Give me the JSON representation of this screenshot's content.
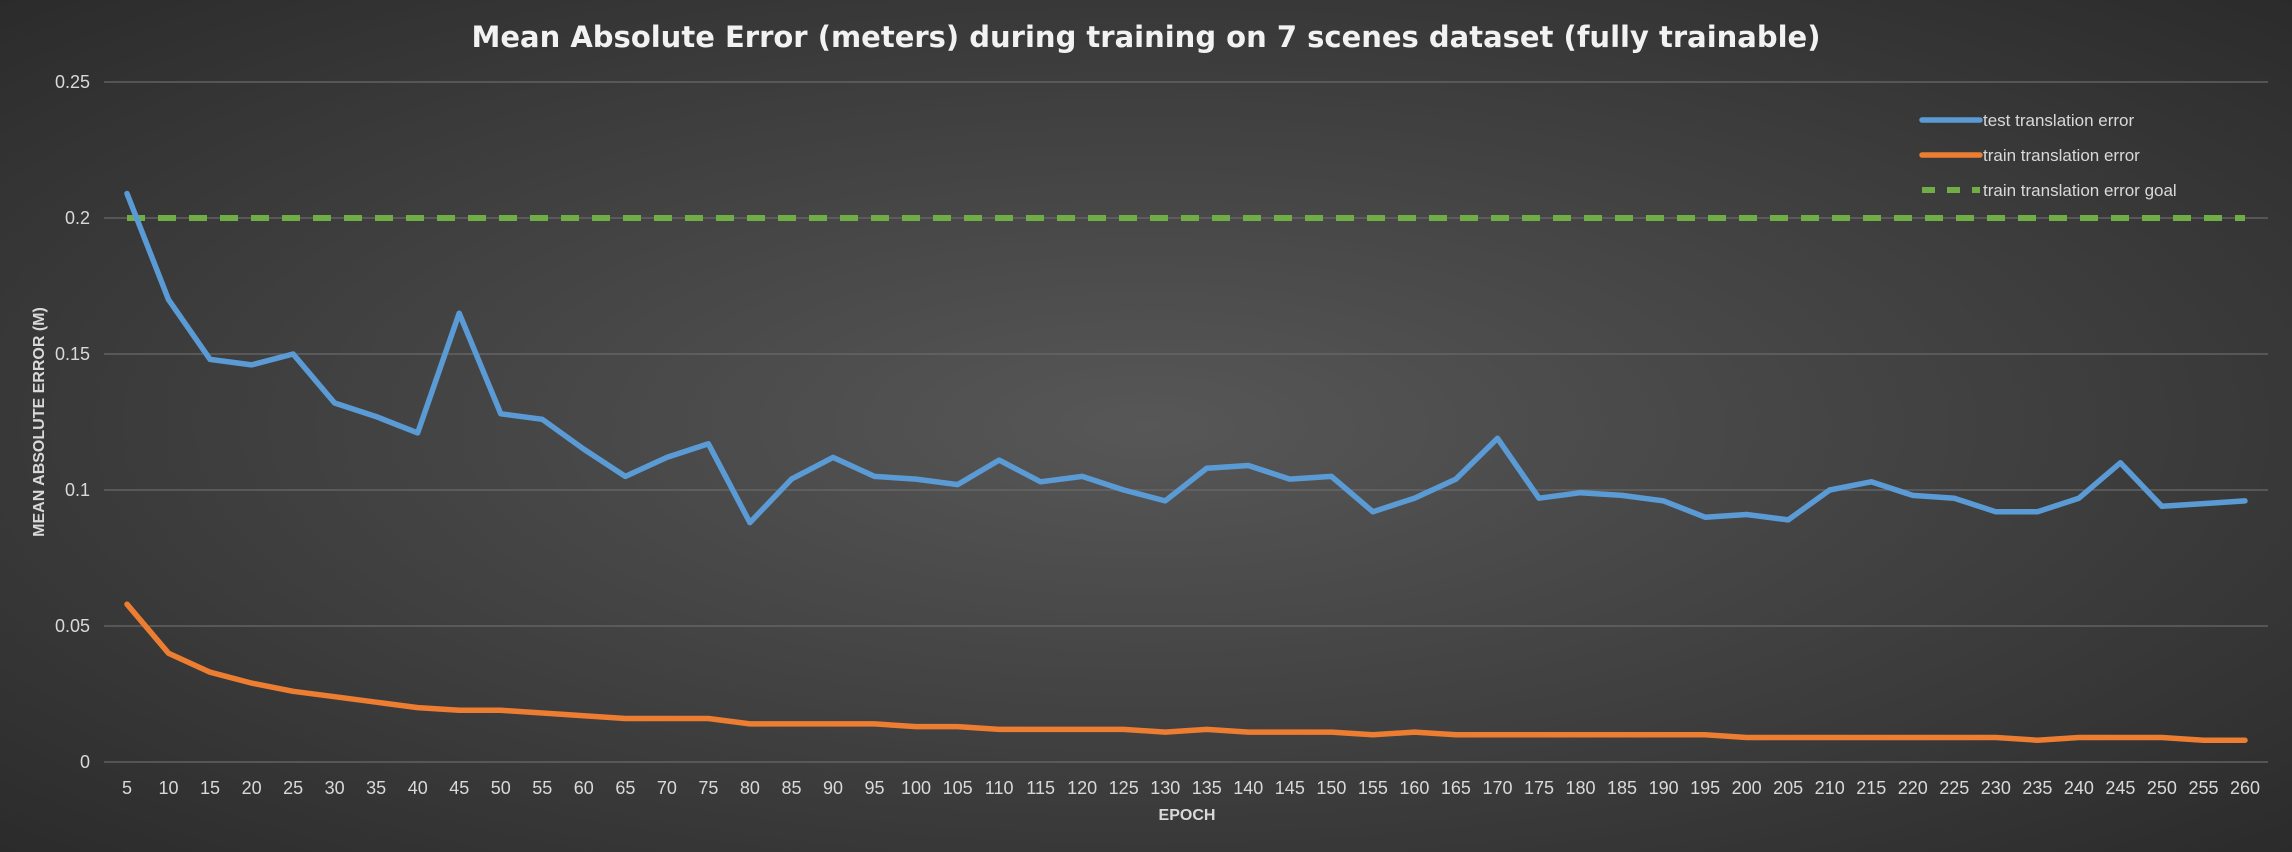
{
  "chart_data": {
    "type": "line",
    "title": "Mean Absolute Error (meters) during training on 7 scenes dataset (fully trainable)",
    "xlabel": "EPOCH",
    "ylabel": "MEAN ABSOLUTE ERROR (M)",
    "ylim": [
      0,
      0.25
    ],
    "yticks": [
      "0",
      "0.05",
      "0.1",
      "0.15",
      "0.2",
      "0.25"
    ],
    "grid": true,
    "legend_position": "top-right",
    "categories": [
      5,
      10,
      15,
      20,
      25,
      30,
      35,
      40,
      45,
      50,
      55,
      60,
      65,
      70,
      75,
      80,
      85,
      90,
      95,
      100,
      105,
      110,
      115,
      120,
      125,
      130,
      135,
      140,
      145,
      150,
      155,
      160,
      165,
      170,
      175,
      180,
      185,
      190,
      195,
      200,
      205,
      210,
      215,
      220,
      225,
      230,
      235,
      240,
      245,
      250,
      255,
      260
    ],
    "series": [
      {
        "name": "test translation error",
        "color": "#5b9bd5",
        "style": "solid",
        "values": [
          0.209,
          0.17,
          0.148,
          0.146,
          0.15,
          0.132,
          0.127,
          0.121,
          0.165,
          0.128,
          0.126,
          0.115,
          0.105,
          0.112,
          0.117,
          0.088,
          0.104,
          0.112,
          0.105,
          0.104,
          0.102,
          0.111,
          0.103,
          0.105,
          0.1,
          0.096,
          0.108,
          0.109,
          0.104,
          0.105,
          0.092,
          0.097,
          0.104,
          0.119,
          0.097,
          0.099,
          0.098,
          0.096,
          0.09,
          0.091,
          0.089,
          0.1,
          0.103,
          0.098,
          0.097,
          0.092,
          0.092,
          0.097,
          0.11,
          0.094,
          0.095,
          0.096
        ]
      },
      {
        "name": "train translation error",
        "color": "#ed7d31",
        "style": "solid",
        "values": [
          0.058,
          0.04,
          0.033,
          0.029,
          0.026,
          0.024,
          0.022,
          0.02,
          0.019,
          0.019,
          0.018,
          0.017,
          0.016,
          0.016,
          0.016,
          0.014,
          0.014,
          0.014,
          0.014,
          0.013,
          0.013,
          0.012,
          0.012,
          0.012,
          0.012,
          0.011,
          0.012,
          0.011,
          0.011,
          0.011,
          0.01,
          0.011,
          0.01,
          0.01,
          0.01,
          0.01,
          0.01,
          0.01,
          0.01,
          0.009,
          0.009,
          0.009,
          0.009,
          0.009,
          0.009,
          0.009,
          0.008,
          0.009,
          0.009,
          0.009,
          0.008,
          0.008
        ]
      },
      {
        "name": "train translation error goal",
        "color": "#70ad47",
        "style": "dashed",
        "values": [
          0.2,
          0.2,
          0.2,
          0.2,
          0.2,
          0.2,
          0.2,
          0.2,
          0.2,
          0.2,
          0.2,
          0.2,
          0.2,
          0.2,
          0.2,
          0.2,
          0.2,
          0.2,
          0.2,
          0.2,
          0.2,
          0.2,
          0.2,
          0.2,
          0.2,
          0.2,
          0.2,
          0.2,
          0.2,
          0.2,
          0.2,
          0.2,
          0.2,
          0.2,
          0.2,
          0.2,
          0.2,
          0.2,
          0.2,
          0.2,
          0.2,
          0.2,
          0.2,
          0.2,
          0.2,
          0.2,
          0.2,
          0.2,
          0.2,
          0.2,
          0.2,
          0.2
        ]
      }
    ]
  }
}
